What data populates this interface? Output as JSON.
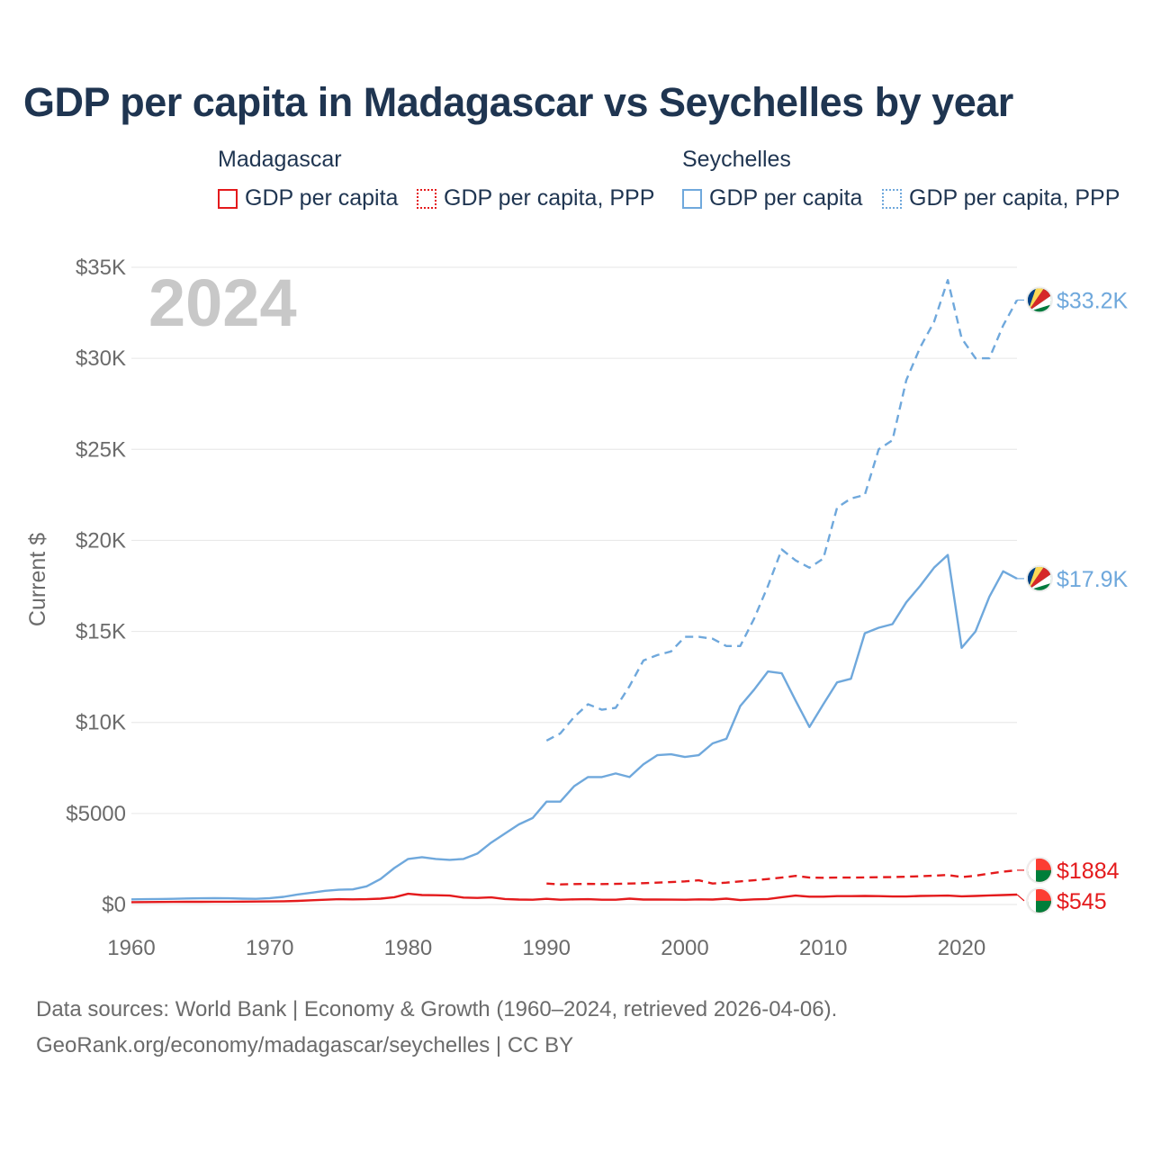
{
  "title": "GDP per capita in Madagascar vs Seychelles by year",
  "legend": {
    "groups": [
      {
        "name": "Madagascar",
        "items": [
          {
            "label": "GDP per capita",
            "style": "solid",
            "color": "#e41a1c"
          },
          {
            "label": "GDP per capita, PPP",
            "style": "dotted",
            "color": "#e41a1c"
          }
        ]
      },
      {
        "name": "Seychelles",
        "items": [
          {
            "label": "GDP per capita",
            "style": "solid",
            "color": "#6fa8dc"
          },
          {
            "label": "GDP per capita, PPP",
            "style": "dotted",
            "color": "#6fa8dc"
          }
        ]
      }
    ]
  },
  "footer": {
    "line1": "Data sources: World Bank | Economy & Growth (1960–2024, retrieved 2026-04-06).",
    "line2": "GeoRank.org/economy/madagascar/seychelles | CC BY"
  },
  "chart_data": {
    "type": "line",
    "year_label": "2024",
    "ylabel": "Current $",
    "xlabel": "",
    "xlim": [
      1960,
      2024
    ],
    "ylim": [
      0,
      35000
    ],
    "x_ticks": [
      1960,
      1970,
      1980,
      1990,
      2000,
      2010,
      2020
    ],
    "y_ticks": [
      {
        "value": 0,
        "label": "$0"
      },
      {
        "value": 5000,
        "label": "$5000"
      },
      {
        "value": 10000,
        "label": "$10K"
      },
      {
        "value": 15000,
        "label": "$15K"
      },
      {
        "value": 20000,
        "label": "$20K"
      },
      {
        "value": 25000,
        "label": "$25K"
      },
      {
        "value": 30000,
        "label": "$30K"
      },
      {
        "value": 35000,
        "label": "$35K"
      }
    ],
    "grid": true,
    "series": [
      {
        "name": "Seychelles GDP per capita, PPP",
        "country": "Seychelles",
        "color": "#6fa8dc",
        "dashed": true,
        "end_label": "$33.2K",
        "x": [
          1990,
          1991,
          1992,
          1993,
          1994,
          1995,
          1996,
          1997,
          1998,
          1999,
          2000,
          2001,
          2002,
          2003,
          2004,
          2005,
          2006,
          2007,
          2008,
          2009,
          2010,
          2011,
          2012,
          2013,
          2014,
          2015,
          2016,
          2017,
          2018,
          2019,
          2020,
          2021,
          2022,
          2023,
          2024
        ],
        "values": [
          9000,
          9400,
          10300,
          11000,
          10700,
          10800,
          12000,
          13400,
          13700,
          13900,
          14700,
          14700,
          14600,
          14200,
          14200,
          15700,
          17500,
          19500,
          18900,
          18500,
          19000,
          21800,
          22300,
          22500,
          25000,
          25500,
          28800,
          30600,
          32000,
          34300,
          31100,
          30000,
          30000,
          31800,
          33200
        ]
      },
      {
        "name": "Seychelles GDP per capita",
        "country": "Seychelles",
        "color": "#6fa8dc",
        "dashed": false,
        "end_label": "$17.9K",
        "x": [
          1960,
          1961,
          1962,
          1963,
          1964,
          1965,
          1966,
          1967,
          1968,
          1969,
          1970,
          1971,
          1972,
          1973,
          1974,
          1975,
          1976,
          1977,
          1978,
          1979,
          1980,
          1981,
          1982,
          1983,
          1984,
          1985,
          1986,
          1987,
          1988,
          1989,
          1990,
          1991,
          1992,
          1993,
          1994,
          1995,
          1996,
          1997,
          1998,
          1999,
          2000,
          2001,
          2002,
          2003,
          2004,
          2005,
          2006,
          2007,
          2008,
          2009,
          2010,
          2011,
          2012,
          2013,
          2014,
          2015,
          2016,
          2017,
          2018,
          2019,
          2020,
          2021,
          2022,
          2023,
          2024
        ],
        "values": [
          280,
          290,
          300,
          310,
          330,
          340,
          345,
          340,
          320,
          310,
          350,
          420,
          550,
          650,
          750,
          810,
          830,
          1000,
          1400,
          2000,
          2500,
          2600,
          2500,
          2450,
          2500,
          2800,
          3400,
          3900,
          4400,
          4750,
          5650,
          5650,
          6500,
          7000,
          7000,
          7200,
          7000,
          7700,
          8200,
          8250,
          8100,
          8200,
          8850,
          9100,
          10900,
          11800,
          12800,
          12700,
          11200,
          9750,
          11000,
          12200,
          12400,
          14900,
          15200,
          15400,
          16600,
          17500,
          18500,
          19200,
          14100,
          15000,
          16900,
          18300,
          17900
        ]
      },
      {
        "name": "Madagascar GDP per capita, PPP",
        "country": "Madagascar",
        "color": "#e41a1c",
        "dashed": true,
        "end_label": "$1884",
        "x": [
          1990,
          1991,
          1992,
          1993,
          1994,
          1995,
          1996,
          1997,
          1998,
          1999,
          2000,
          2001,
          2002,
          2003,
          2004,
          2005,
          2006,
          2007,
          2008,
          2009,
          2010,
          2011,
          2012,
          2013,
          2014,
          2015,
          2016,
          2017,
          2018,
          2019,
          2020,
          2021,
          2022,
          2023,
          2024
        ],
        "values": [
          1150,
          1100,
          1120,
          1130,
          1120,
          1130,
          1150,
          1170,
          1200,
          1230,
          1270,
          1330,
          1150,
          1200,
          1270,
          1330,
          1400,
          1480,
          1570,
          1480,
          1470,
          1480,
          1480,
          1490,
          1500,
          1510,
          1530,
          1550,
          1580,
          1620,
          1510,
          1580,
          1700,
          1800,
          1884
        ]
      },
      {
        "name": "Madagascar GDP per capita",
        "country": "Madagascar",
        "color": "#e41a1c",
        "dashed": false,
        "end_label": "$545",
        "x": [
          1960,
          1961,
          1962,
          1963,
          1964,
          1965,
          1966,
          1967,
          1968,
          1969,
          1970,
          1971,
          1972,
          1973,
          1974,
          1975,
          1976,
          1977,
          1978,
          1979,
          1980,
          1981,
          1982,
          1983,
          1984,
          1985,
          1986,
          1987,
          1988,
          1989,
          1990,
          1991,
          1992,
          1993,
          1994,
          1995,
          1996,
          1997,
          1998,
          1999,
          2000,
          2001,
          2002,
          2003,
          2004,
          2005,
          2006,
          2007,
          2008,
          2009,
          2010,
          2011,
          2012,
          2013,
          2014,
          2015,
          2016,
          2017,
          2018,
          2019,
          2020,
          2021,
          2022,
          2023,
          2024
        ],
        "values": [
          130,
          135,
          140,
          145,
          150,
          150,
          155,
          155,
          160,
          165,
          170,
          180,
          200,
          230,
          260,
          290,
          280,
          290,
          320,
          400,
          590,
          520,
          510,
          490,
          380,
          360,
          390,
          300,
          270,
          260,
          310,
          260,
          280,
          290,
          260,
          260,
          320,
          270,
          270,
          265,
          260,
          280,
          270,
          320,
          240,
          280,
          300,
          400,
          490,
          430,
          430,
          460,
          460,
          470,
          460,
          440,
          440,
          470,
          480,
          490,
          450,
          470,
          500,
          520,
          545
        ]
      }
    ]
  }
}
